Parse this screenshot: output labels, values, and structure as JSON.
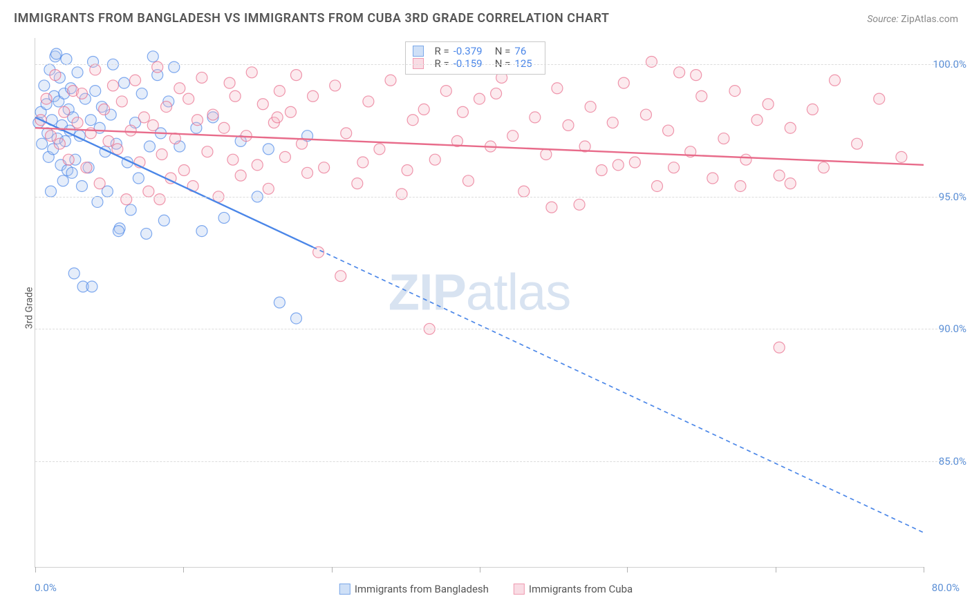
{
  "title": "IMMIGRANTS FROM BANGLADESH VS IMMIGRANTS FROM CUBA 3RD GRADE CORRELATION CHART",
  "source_label": "Source: ",
  "source_name": "ZipAtlas.com",
  "y_axis_label": "3rd Grade",
  "watermark_bold": "ZIP",
  "watermark_rest": "atlas",
  "chart": {
    "type": "scatter-with-regression",
    "background_color": "#ffffff",
    "grid_color": "#dcdcdc",
    "axis_color": "#d0d0d0",
    "tick_label_color": "#5b8fd6",
    "xlim": [
      0,
      80
    ],
    "ylim": [
      81,
      101
    ],
    "x_tick_positions": [
      0,
      13.3,
      26.7,
      40,
      53.3,
      66.7,
      80
    ],
    "x_tick_labels_shown": {
      "left": "0.0%",
      "right": "80.0%"
    },
    "y_ticks": [
      85.0,
      90.0,
      95.0,
      100.0
    ],
    "y_tick_labels": [
      "85.0%",
      "90.0%",
      "95.0%",
      "100.0%"
    ],
    "marker_radius": 8,
    "marker_fill_opacity": 0.3,
    "marker_stroke_width": 1.2,
    "line_width": 2.4,
    "dash_pattern": "6,5"
  },
  "series": [
    {
      "id": "bangladesh",
      "label": "Immigrants from Bangladesh",
      "color_stroke": "#4a86e8",
      "color_fill": "#a9c5f0",
      "swatch_fill": "#cfe0f7",
      "swatch_border": "#7aa7e8",
      "R": "-0.379",
      "N": "76",
      "regression": {
        "x1": 0,
        "y1": 98.0,
        "x2": 80,
        "y2": 82.3,
        "solid_until_x": 25
      },
      "points": [
        [
          0.3,
          97.8
        ],
        [
          0.5,
          98.2
        ],
        [
          0.6,
          97.0
        ],
        [
          0.8,
          99.2
        ],
        [
          1.0,
          98.5
        ],
        [
          1.1,
          97.4
        ],
        [
          1.2,
          96.5
        ],
        [
          1.3,
          99.8
        ],
        [
          1.4,
          95.2
        ],
        [
          1.5,
          97.9
        ],
        [
          1.6,
          96.8
        ],
        [
          1.7,
          98.8
        ],
        [
          1.8,
          100.3
        ],
        [
          2.0,
          97.2
        ],
        [
          2.1,
          98.6
        ],
        [
          2.2,
          99.5
        ],
        [
          2.3,
          96.2
        ],
        [
          2.4,
          97.7
        ],
        [
          2.5,
          95.6
        ],
        [
          2.6,
          98.9
        ],
        [
          2.7,
          97.1
        ],
        [
          2.8,
          100.2
        ],
        [
          2.9,
          96.0
        ],
        [
          3.0,
          98.3
        ],
        [
          3.1,
          97.5
        ],
        [
          3.2,
          99.1
        ],
        [
          3.3,
          95.9
        ],
        [
          3.4,
          98.0
        ],
        [
          3.6,
          96.4
        ],
        [
          3.8,
          99.7
        ],
        [
          4.0,
          97.3
        ],
        [
          4.2,
          95.4
        ],
        [
          4.5,
          98.7
        ],
        [
          4.8,
          96.1
        ],
        [
          5.0,
          97.9
        ],
        [
          5.2,
          100.1
        ],
        [
          5.4,
          99.0
        ],
        [
          5.6,
          94.8
        ],
        [
          5.8,
          97.6
        ],
        [
          6.0,
          98.4
        ],
        [
          6.3,
          96.7
        ],
        [
          6.5,
          95.2
        ],
        [
          6.8,
          98.1
        ],
        [
          7.0,
          100.0
        ],
        [
          7.3,
          97.0
        ],
        [
          7.6,
          93.8
        ],
        [
          8.0,
          99.3
        ],
        [
          8.3,
          96.3
        ],
        [
          8.6,
          94.5
        ],
        [
          9.0,
          97.8
        ],
        [
          9.3,
          95.7
        ],
        [
          9.6,
          98.9
        ],
        [
          10.0,
          93.6
        ],
        [
          10.3,
          96.9
        ],
        [
          10.6,
          100.3
        ],
        [
          11.0,
          99.6
        ],
        [
          11.3,
          97.4
        ],
        [
          11.6,
          94.1
        ],
        [
          12.0,
          98.6
        ],
        [
          12.5,
          99.9
        ],
        [
          3.5,
          92.1
        ],
        [
          4.3,
          91.6
        ],
        [
          5.1,
          91.6
        ],
        [
          7.5,
          93.7
        ],
        [
          13.0,
          96.9
        ],
        [
          14.5,
          97.6
        ],
        [
          15.0,
          93.7
        ],
        [
          16.0,
          98.0
        ],
        [
          17.0,
          94.2
        ],
        [
          18.5,
          97.1
        ],
        [
          20.0,
          95.0
        ],
        [
          21.0,
          96.8
        ],
        [
          22.0,
          91.0
        ],
        [
          23.5,
          90.4
        ],
        [
          24.5,
          97.3
        ],
        [
          1.9,
          100.4
        ]
      ]
    },
    {
      "id": "cuba",
      "label": "Immigrants from Cuba",
      "color_stroke": "#e86b8a",
      "color_fill": "#f4b9c8",
      "swatch_fill": "#f9dce4",
      "swatch_border": "#ef9ab0",
      "R": "-0.159",
      "N": "125",
      "regression": {
        "x1": 0,
        "y1": 97.6,
        "x2": 80,
        "y2": 96.2,
        "solid_until_x": 80
      },
      "points": [
        [
          0.5,
          97.9
        ],
        [
          1.0,
          98.7
        ],
        [
          1.4,
          97.3
        ],
        [
          1.8,
          99.6
        ],
        [
          2.2,
          97.0
        ],
        [
          2.6,
          98.2
        ],
        [
          3.0,
          96.4
        ],
        [
          3.4,
          99.0
        ],
        [
          3.8,
          97.8
        ],
        [
          4.2,
          98.9
        ],
        [
          4.6,
          96.1
        ],
        [
          5.0,
          97.4
        ],
        [
          5.4,
          99.8
        ],
        [
          5.8,
          95.5
        ],
        [
          6.2,
          98.3
        ],
        [
          6.6,
          97.1
        ],
        [
          7.0,
          99.2
        ],
        [
          7.4,
          96.8
        ],
        [
          7.8,
          98.6
        ],
        [
          8.2,
          94.9
        ],
        [
          8.6,
          97.5
        ],
        [
          9.0,
          99.4
        ],
        [
          9.4,
          96.3
        ],
        [
          9.8,
          98.0
        ],
        [
          10.2,
          95.2
        ],
        [
          10.6,
          97.7
        ],
        [
          11.0,
          99.9
        ],
        [
          11.4,
          96.6
        ],
        [
          11.8,
          98.4
        ],
        [
          12.2,
          95.7
        ],
        [
          12.6,
          97.2
        ],
        [
          13.0,
          99.1
        ],
        [
          13.4,
          96.0
        ],
        [
          13.8,
          98.7
        ],
        [
          14.2,
          95.4
        ],
        [
          14.6,
          97.9
        ],
        [
          15.0,
          99.5
        ],
        [
          15.5,
          96.7
        ],
        [
          16.0,
          98.1
        ],
        [
          16.5,
          95.0
        ],
        [
          17.0,
          97.6
        ],
        [
          17.5,
          99.3
        ],
        [
          18.0,
          98.8
        ],
        [
          18.5,
          95.8
        ],
        [
          19.0,
          97.3
        ],
        [
          19.5,
          99.7
        ],
        [
          20.0,
          96.2
        ],
        [
          20.5,
          98.5
        ],
        [
          21.0,
          95.3
        ],
        [
          21.5,
          97.8
        ],
        [
          22.0,
          99.0
        ],
        [
          22.5,
          96.5
        ],
        [
          23.0,
          98.2
        ],
        [
          23.5,
          99.6
        ],
        [
          24.0,
          97.0
        ],
        [
          24.5,
          95.9
        ],
        [
          25.0,
          98.8
        ],
        [
          26.0,
          96.1
        ],
        [
          27.0,
          99.2
        ],
        [
          27.5,
          92.0
        ],
        [
          28.0,
          97.4
        ],
        [
          29.0,
          95.5
        ],
        [
          30.0,
          98.6
        ],
        [
          31.0,
          96.8
        ],
        [
          32.0,
          99.4
        ],
        [
          33.0,
          95.1
        ],
        [
          34.0,
          97.9
        ],
        [
          35.0,
          98.3
        ],
        [
          35.5,
          90.0
        ],
        [
          36.0,
          96.4
        ],
        [
          37.0,
          99.0
        ],
        [
          38.0,
          97.1
        ],
        [
          39.0,
          95.6
        ],
        [
          40.0,
          98.7
        ],
        [
          41.0,
          96.9
        ],
        [
          42.0,
          99.5
        ],
        [
          43.0,
          97.3
        ],
        [
          44.0,
          95.2
        ],
        [
          45.0,
          98.0
        ],
        [
          46.0,
          96.6
        ],
        [
          47.0,
          99.1
        ],
        [
          48.0,
          97.7
        ],
        [
          49.0,
          94.7
        ],
        [
          50.0,
          98.4
        ],
        [
          51.0,
          96.0
        ],
        [
          52.0,
          97.8
        ],
        [
          53.0,
          99.3
        ],
        [
          54.0,
          96.3
        ],
        [
          55.0,
          98.1
        ],
        [
          56.0,
          95.4
        ],
        [
          57.0,
          97.5
        ],
        [
          58.0,
          99.7
        ],
        [
          59.0,
          96.7
        ],
        [
          60.0,
          98.8
        ],
        [
          61.0,
          95.7
        ],
        [
          62.0,
          97.2
        ],
        [
          63.0,
          99.0
        ],
        [
          64.0,
          96.4
        ],
        [
          65.0,
          97.9
        ],
        [
          66.0,
          98.5
        ],
        [
          67.0,
          95.8
        ],
        [
          68.0,
          97.6
        ],
        [
          70.0,
          98.3
        ],
        [
          71.0,
          96.1
        ],
        [
          72.0,
          99.4
        ],
        [
          74.0,
          97.0
        ],
        [
          76.0,
          98.7
        ],
        [
          78.0,
          96.5
        ],
        [
          11.2,
          94.9
        ],
        [
          17.8,
          96.4
        ],
        [
          25.5,
          92.9
        ],
        [
          33.5,
          96.0
        ],
        [
          41.5,
          98.9
        ],
        [
          46.5,
          94.6
        ],
        [
          52.5,
          96.2
        ],
        [
          55.5,
          100.1
        ],
        [
          59.5,
          99.6
        ],
        [
          63.5,
          95.4
        ],
        [
          67.0,
          89.3
        ],
        [
          68.0,
          95.5
        ],
        [
          57.5,
          96.1
        ],
        [
          49.5,
          96.9
        ],
        [
          38.5,
          98.2
        ],
        [
          29.5,
          96.3
        ],
        [
          21.8,
          98.0
        ]
      ]
    }
  ],
  "inset_legend": {
    "r_label": "R =",
    "n_label": "N ="
  },
  "bottom_legend_labels": [
    "Immigrants from Bangladesh",
    "Immigrants from Cuba"
  ]
}
